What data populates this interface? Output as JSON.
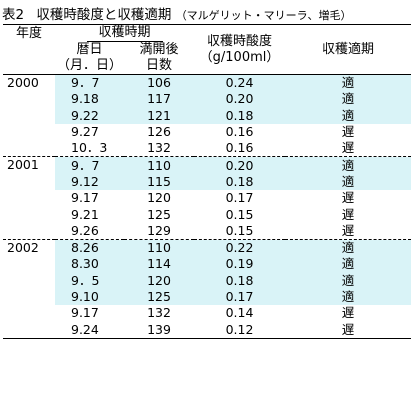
{
  "caption": {
    "label": "表2",
    "title": "収穫時酸度と収穫適期",
    "variety": "（マルゲリット・マリーラ、増毛）"
  },
  "headers": {
    "year": "年度",
    "harvest_time": "収穫時期",
    "calendar_date": "暦日",
    "calendar_date_unit": "（月．日）",
    "days_after_bloom": "満開後",
    "days_after_bloom_unit": "日数",
    "acidity": "収穫時酸度",
    "acidity_unit": "（g/100ml）",
    "suitability": "収穫適期"
  },
  "groups": [
    {
      "year": "2000",
      "rows": [
        {
          "date": "9．7",
          "days": "106",
          "acidity": "0.24",
          "judgement": "適",
          "highlight": true
        },
        {
          "date": "9.18",
          "days": "117",
          "acidity": "0.20",
          "judgement": "適",
          "highlight": true
        },
        {
          "date": "9.22",
          "days": "121",
          "acidity": "0.18",
          "judgement": "適",
          "highlight": true
        },
        {
          "date": "9.27",
          "days": "126",
          "acidity": "0.16",
          "judgement": "遅",
          "highlight": false
        },
        {
          "date": "10．3",
          "days": "132",
          "acidity": "0.16",
          "judgement": "遅",
          "highlight": false
        }
      ]
    },
    {
      "year": "2001",
      "rows": [
        {
          "date": "9．7",
          "days": "110",
          "acidity": "0.20",
          "judgement": "適",
          "highlight": true
        },
        {
          "date": "9.12",
          "days": "115",
          "acidity": "0.18",
          "judgement": "適",
          "highlight": true
        },
        {
          "date": "9.17",
          "days": "120",
          "acidity": "0.17",
          "judgement": "遅",
          "highlight": false
        },
        {
          "date": "9.21",
          "days": "125",
          "acidity": "0.15",
          "judgement": "遅",
          "highlight": false
        },
        {
          "date": "9.26",
          "days": "129",
          "acidity": "0.15",
          "judgement": "遅",
          "highlight": false
        }
      ]
    },
    {
      "year": "2002",
      "rows": [
        {
          "date": "8.26",
          "days": "110",
          "acidity": "0.22",
          "judgement": "適",
          "highlight": true
        },
        {
          "date": "8.30",
          "days": "114",
          "acidity": "0.19",
          "judgement": "適",
          "highlight": true
        },
        {
          "date": "9．5",
          "days": "120",
          "acidity": "0.18",
          "judgement": "適",
          "highlight": true
        },
        {
          "date": "9.10",
          "days": "125",
          "acidity": "0.17",
          "judgement": "適",
          "highlight": true
        },
        {
          "date": "9.17",
          "days": "132",
          "acidity": "0.14",
          "judgement": "遅",
          "highlight": false
        },
        {
          "date": "9.24",
          "days": "139",
          "acidity": "0.12",
          "judgement": "遅",
          "highlight": false
        }
      ]
    }
  ],
  "colors": {
    "highlight": "#d9f3f7"
  }
}
